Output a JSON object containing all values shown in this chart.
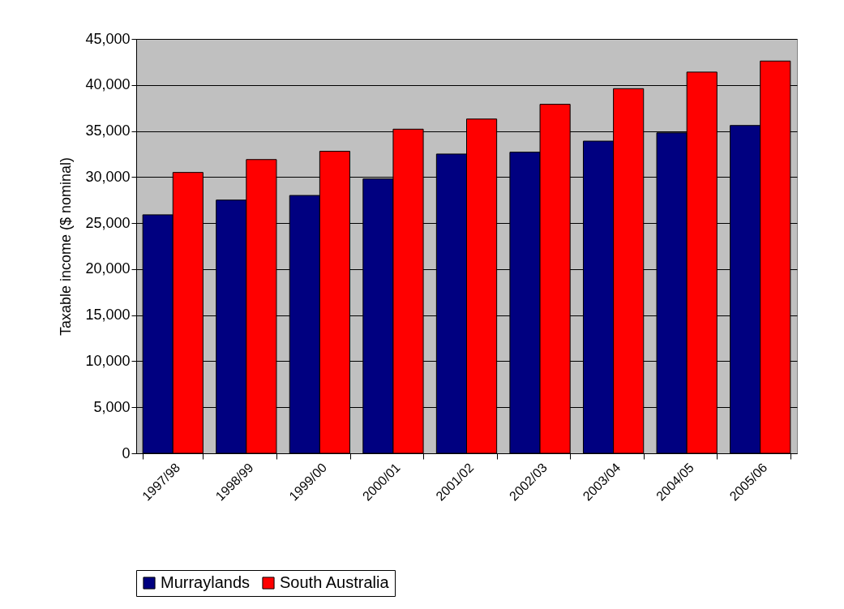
{
  "chart_data": {
    "type": "bar",
    "ylabel": "Taxable income ($ nominal)",
    "categories": [
      "1997/98",
      "1998/99",
      "1999/00",
      "2000/01",
      "2001/02",
      "2002/03",
      "2003/04",
      "2004/05",
      "2005/06"
    ],
    "series": [
      {
        "name": "Murraylands",
        "color": "#000080",
        "values": [
          25900,
          27500,
          28000,
          29800,
          32500,
          32700,
          33900,
          34800,
          35600
        ]
      },
      {
        "name": "South Australia",
        "color": "#ff0000",
        "values": [
          30500,
          31900,
          32800,
          35200,
          36300,
          37900,
          39600,
          41400,
          42600
        ]
      }
    ],
    "ylim": [
      0,
      45000
    ],
    "yticks": [
      0,
      {
        "value": 5000,
        "label": "5,000"
      },
      {
        "value": 10000,
        "label": "10,000"
      },
      {
        "value": 15000,
        "label": "15,000"
      },
      {
        "value": 20000,
        "label": "20,000"
      },
      {
        "value": 25000,
        "label": "25,000"
      },
      {
        "value": 30000,
        "label": "30,000"
      },
      {
        "value": 35000,
        "label": "35,000"
      },
      {
        "value": 40000,
        "label": "40,000"
      },
      {
        "value": 45000,
        "label": "45,000"
      }
    ],
    "grid": "y",
    "legend": "bottom"
  }
}
